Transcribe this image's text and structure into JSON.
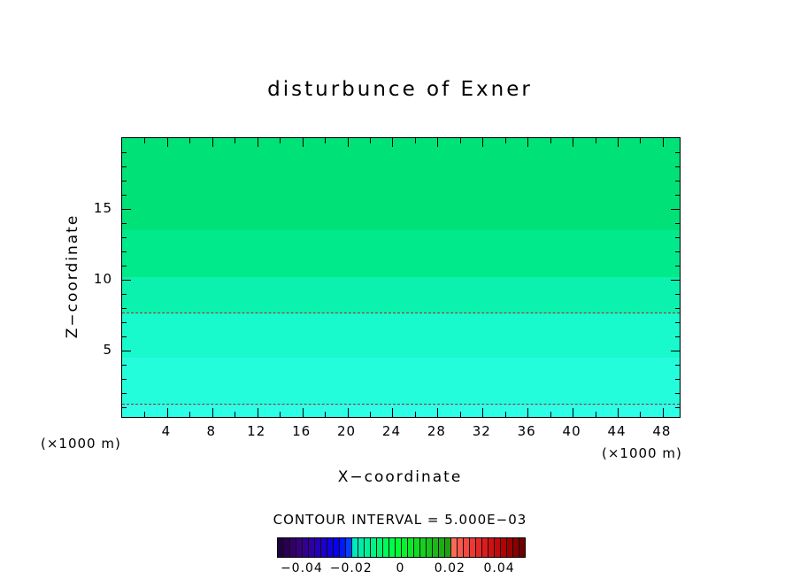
{
  "title": "disturbunce  of  Exner",
  "axes": {
    "x_label": "X−coordinate",
    "y_label": "Z−coordinate",
    "x_unit": "(×1000 m)",
    "y_unit": "(×1000 m)"
  },
  "contour_note": "CONTOUR INTERVAL = 5.000E−03",
  "chart_data": {
    "type": "heatmap",
    "title": "disturbunce of Exner",
    "xlabel": "X-coordinate (×1000 m)",
    "ylabel": "Z-coordinate (×1000 m)",
    "x_range": [
      0,
      49.5
    ],
    "y_range": [
      0.3,
      20
    ],
    "x_major_ticks": [
      4,
      8,
      12,
      16,
      20,
      24,
      28,
      32,
      36,
      40,
      44,
      48
    ],
    "x_minor_step": 2,
    "y_major_ticks": [
      5,
      10,
      15
    ],
    "y_minor_step": 1,
    "grid": false,
    "contour_interval": "5.000E-03",
    "fill_bands": [
      {
        "z_top": 20,
        "z_bottom": 13.5,
        "color": "#00E278"
      },
      {
        "z_top": 13.5,
        "z_bottom": 10.2,
        "color": "#00EA8C"
      },
      {
        "z_top": 10.2,
        "z_bottom": 7.7,
        "color": "#0AF2AE"
      },
      {
        "z_top": 7.7,
        "z_bottom": 4.5,
        "color": "#18F9CC"
      },
      {
        "z_top": 4.5,
        "z_bottom": 1.25,
        "color": "#24FDDC"
      },
      {
        "z_top": 1.25,
        "z_bottom": 0.3,
        "color": "#2CFFE6"
      }
    ],
    "dashed_contours": [
      {
        "z": 7.7,
        "color": "#B22222"
      },
      {
        "z": 1.25,
        "color": "#B22222"
      }
    ],
    "colorbar": {
      "range": [
        -0.05,
        0.05
      ],
      "tick_values": [
        -0.04,
        -0.02,
        0,
        0.02,
        0.04
      ],
      "tick_labels": [
        "−0.04",
        "−0.02",
        "0",
        "0.02",
        "0.04"
      ],
      "colors": [
        "#200040",
        "#2A0054",
        "#320068",
        "#38007C",
        "#340090",
        "#2E00A4",
        "#2600B8",
        "#1C00CC",
        "#1200E0",
        "#0800F0",
        "#0018FA",
        "#0040FF",
        "#00E8C0",
        "#00ECAC",
        "#00F098",
        "#00F484",
        "#00F770",
        "#00FA5C",
        "#00FC48",
        "#00FE34",
        "#04F42C",
        "#0AE828",
        "#10DC24",
        "#14D020",
        "#18C41C",
        "#1CB818",
        "#1EAC14",
        "#20A010",
        "#FF6858",
        "#FA584C",
        "#F44840",
        "#EC3834",
        "#E42828",
        "#DA1C1E",
        "#CE1214",
        "#C00A0C",
        "#B00404",
        "#9E0000",
        "#880000",
        "#700000"
      ]
    }
  }
}
